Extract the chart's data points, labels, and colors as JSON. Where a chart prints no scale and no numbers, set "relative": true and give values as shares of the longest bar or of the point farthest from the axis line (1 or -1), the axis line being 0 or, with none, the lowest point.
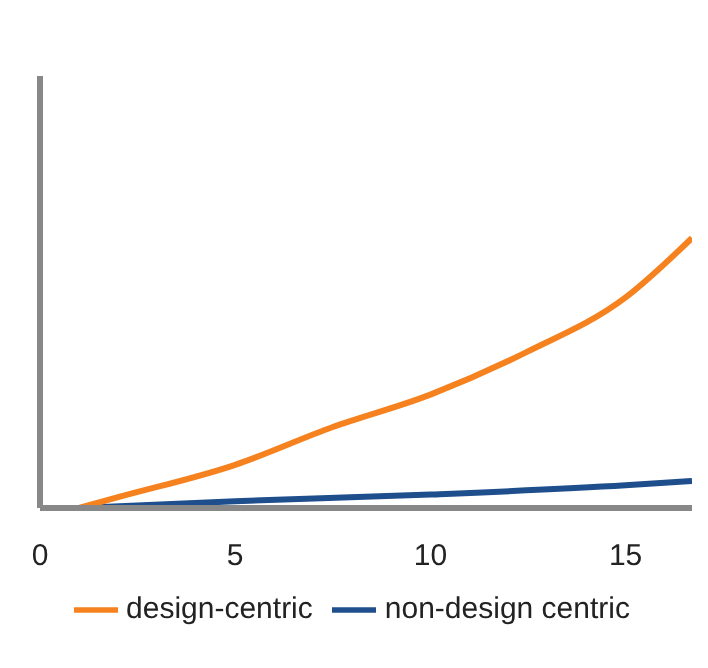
{
  "chart_data": {
    "type": "line",
    "relative": true,
    "xlim": [
      0,
      16.7
    ],
    "xticks": [
      0,
      5,
      10,
      15
    ],
    "legend": "bottom",
    "marker": "none",
    "line_style": "solid",
    "grid": false,
    "series": [
      {
        "name": "non-design centric",
        "color": "#1f4e8c",
        "x": [
          1,
          5,
          10,
          15,
          16.7
        ],
        "values": [
          0,
          0.025,
          0.05,
          0.084,
          0.1
        ]
      },
      {
        "name": "design-centric",
        "color": "#f5821f",
        "x": [
          1,
          2,
          5,
          7.5,
          10,
          12.5,
          15,
          16.7
        ],
        "values": [
          0,
          0.04,
          0.16,
          0.3,
          0.42,
          0.58,
          0.78,
          1
        ]
      }
    ]
  }
}
